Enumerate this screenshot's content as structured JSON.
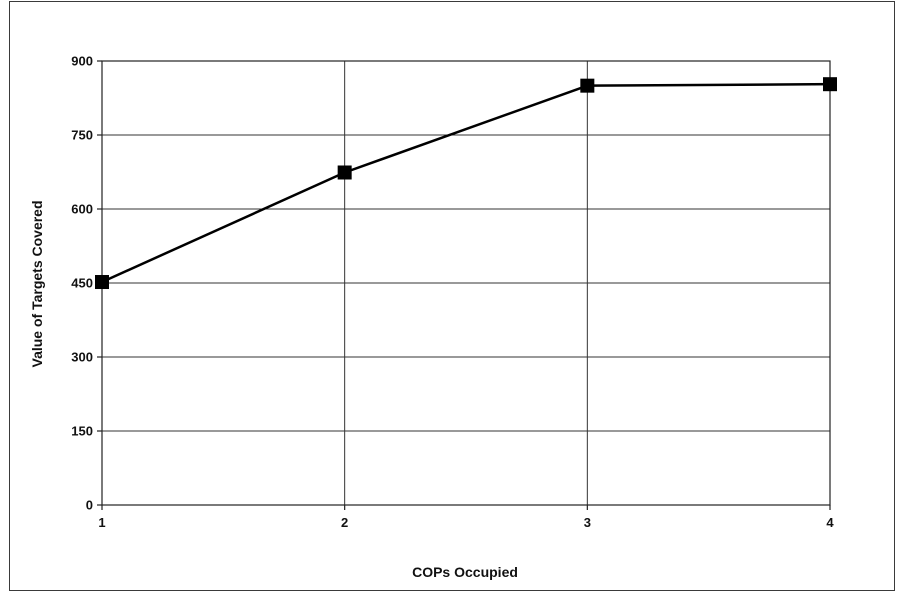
{
  "chart_data": {
    "type": "line",
    "title": "",
    "xlabel": "COPs Occupied",
    "ylabel": "Value of Targets Covered",
    "x": [
      1,
      2,
      3,
      4
    ],
    "x_tick_labels": [
      "1",
      "2",
      "3",
      "4"
    ],
    "y_ticks": [
      0,
      150,
      300,
      450,
      600,
      750,
      900
    ],
    "ylim": [
      0,
      900
    ],
    "grid": true,
    "legend": "none",
    "series": [
      {
        "values": [
          452,
          674,
          850,
          853
        ],
        "color": "#000000",
        "marker": "square"
      }
    ]
  }
}
